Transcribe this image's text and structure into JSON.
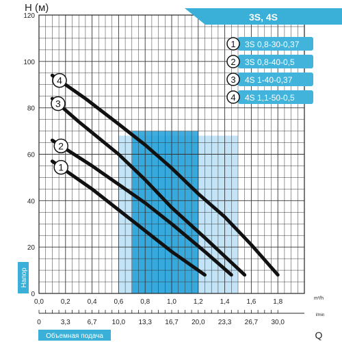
{
  "chart_data": {
    "type": "line",
    "title": "3S, 4S",
    "ylabel": "H (м)",
    "xlabel_top_unit": "m³/h",
    "xlabel_bottom_unit": "l/min",
    "xlabel_bottom_letter": "Q",
    "side_label": "Напор",
    "bottom_label": "Объемная подача",
    "xlim": [
      0,
      2.0
    ],
    "ylim": [
      0,
      120
    ],
    "y_ticks": [
      0,
      20,
      40,
      60,
      80,
      100,
      120
    ],
    "x_ticks_m3h": [
      "0,0",
      "0,2",
      "0,4",
      "0,6",
      "0,8",
      "1,0",
      "1,2",
      "1,4",
      "1,6",
      "1,8"
    ],
    "x_ticks_lmin": [
      "0",
      "3,3",
      "6,7",
      "10,0",
      "13,3",
      "16,7",
      "20,0",
      "23,3",
      "26,7",
      "30,0"
    ],
    "grid": true,
    "colors": {
      "curve": "#111111",
      "accent": "#3ab0d8",
      "band_dark": "#1e9fd8",
      "band_light": "#a9d7f2",
      "legend_bg": "#42b4dc",
      "grid": "#333333"
    },
    "series": [
      {
        "name": "3S 0,8-30-0,37",
        "label": "1",
        "x": [
          0.1,
          0.4,
          0.8,
          1.0,
          1.25
        ],
        "y": [
          57,
          45,
          27,
          18,
          8
        ]
      },
      {
        "name": "3S 0,8-40-0,5",
        "label": "2",
        "x": [
          0.1,
          0.4,
          0.8,
          1.0,
          1.25,
          1.45
        ],
        "y": [
          66,
          55,
          39,
          30,
          18,
          8
        ]
      },
      {
        "name": "4S 1-40-0,37",
        "label": "3",
        "x": [
          0.1,
          0.3,
          0.6,
          0.8,
          1.0,
          1.25,
          1.55
        ],
        "y": [
          84,
          74,
          60,
          49,
          37,
          24,
          8
        ]
      },
      {
        "name": "4S 1,1-50-0,5",
        "label": "4",
        "x": [
          0.1,
          0.35,
          0.6,
          0.8,
          1.0,
          1.2,
          1.4,
          1.6,
          1.8
        ],
        "y": [
          94,
          84,
          73,
          64,
          54,
          43,
          33,
          21,
          8
        ]
      }
    ],
    "bands": [
      {
        "x": [
          0.6,
          1.5
        ],
        "ymax": 68,
        "tone": "light"
      },
      {
        "x": [
          0.7,
          1.2
        ],
        "ymax": 70,
        "tone": "dark"
      }
    ]
  }
}
